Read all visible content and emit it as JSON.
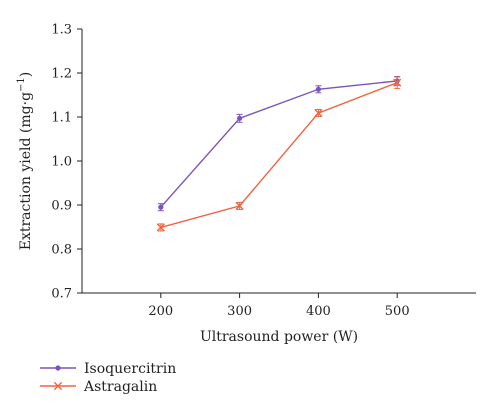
{
  "chart_data": {
    "type": "line",
    "title": "",
    "xlabel": "Ultrasound power (W)",
    "ylabel": {
      "main": "Extraction yield (mg·g",
      "sup": "−1",
      "close": ")"
    },
    "categories": [
      "200",
      "300",
      "400",
      "500"
    ],
    "x": [
      200,
      300,
      400,
      500
    ],
    "xlim": [
      100,
      600
    ],
    "ylim": [
      0.7,
      1.3
    ],
    "yticks": [
      "0.7",
      "0.8",
      "0.9",
      "1.0",
      "1.1",
      "1.2",
      "1.3"
    ],
    "grid": false,
    "legend_position": "bottom-left",
    "series": [
      {
        "name": "Isoquercitrin",
        "color": "#7b55b5",
        "marker": "dot",
        "values": [
          0.895,
          1.097,
          1.163,
          1.182
        ],
        "errors": [
          0.008,
          0.009,
          0.008,
          0.01
        ]
      },
      {
        "name": "Astragalin",
        "color": "#ee6541",
        "marker": "x",
        "values": [
          0.849,
          0.898,
          1.109,
          1.178
        ],
        "errors": [
          0.008,
          0.008,
          0.008,
          0.013
        ]
      }
    ]
  }
}
